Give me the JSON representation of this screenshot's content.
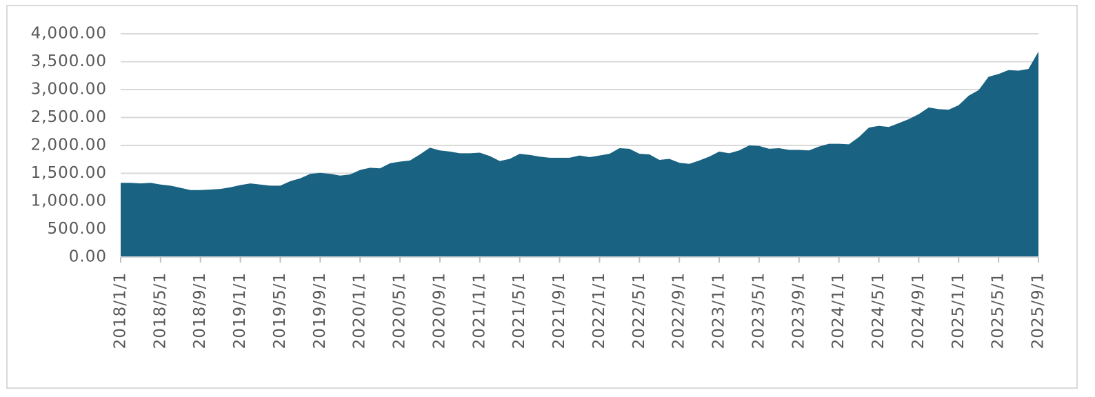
{
  "chart_data": {
    "type": "area",
    "color": "#196282",
    "grid": true,
    "categories": [
      "2018/1/1",
      null,
      null,
      null,
      "2018/5/1",
      null,
      null,
      null,
      "2018/9/1",
      null,
      null,
      null,
      "2019/1/1",
      null,
      null,
      null,
      "2019/5/1",
      null,
      null,
      null,
      "2019/9/1",
      null,
      null,
      null,
      "2020/1/1",
      null,
      null,
      null,
      "2020/5/1",
      null,
      null,
      null,
      "2020/9/1",
      null,
      null,
      null,
      "2021/1/1",
      null,
      null,
      null,
      "2021/5/1",
      null,
      null,
      null,
      "2021/9/1",
      null,
      null,
      null,
      "2022/1/1",
      null,
      null,
      null,
      "2022/5/1",
      null,
      null,
      null,
      "2022/9/1",
      null,
      null,
      null,
      "2023/1/1",
      null,
      null,
      null,
      "2023/5/1",
      null,
      null,
      null,
      "2023/9/1",
      null,
      null,
      null,
      "2024/1/1",
      null,
      null,
      null,
      "2024/5/1",
      null,
      null,
      null,
      "2024/9/1",
      null,
      null,
      null,
      "2025/1/1",
      null,
      null,
      null,
      "2025/5/1",
      null,
      null,
      null,
      "2025/9/1"
    ],
    "values": [
      1330,
      1330,
      1320,
      1330,
      1300,
      1280,
      1240,
      1200,
      1200,
      1210,
      1220,
      1250,
      1290,
      1320,
      1300,
      1280,
      1280,
      1360,
      1410,
      1490,
      1510,
      1490,
      1460,
      1480,
      1560,
      1600,
      1590,
      1680,
      1710,
      1730,
      1840,
      1960,
      1910,
      1890,
      1860,
      1860,
      1870,
      1810,
      1720,
      1760,
      1850,
      1830,
      1800,
      1780,
      1780,
      1780,
      1820,
      1790,
      1820,
      1850,
      1950,
      1940,
      1850,
      1840,
      1740,
      1760,
      1690,
      1670,
      1730,
      1800,
      1890,
      1860,
      1910,
      2000,
      1990,
      1940,
      1950,
      1920,
      1920,
      1910,
      1980,
      2030,
      2030,
      2020,
      2150,
      2320,
      2350,
      2330,
      2400,
      2470,
      2560,
      2680,
      2650,
      2640,
      2720,
      2890,
      2990,
      3230,
      3280,
      3350,
      3340,
      3370,
      3680
    ],
    "ylim": [
      0,
      4000
    ],
    "yticks": [
      {
        "value": 0,
        "label": "0.00"
      },
      {
        "value": 500,
        "label": "500.00"
      },
      {
        "value": 1000,
        "label": "1,000.00"
      },
      {
        "value": 1500,
        "label": "1,500.00"
      },
      {
        "value": 2000,
        "label": "2,000.00"
      },
      {
        "value": 2500,
        "label": "2,500.00"
      },
      {
        "value": 3000,
        "label": "3,000.00"
      },
      {
        "value": 3500,
        "label": "3,500.00"
      },
      {
        "value": 4000,
        "label": "4,000.00"
      }
    ]
  }
}
